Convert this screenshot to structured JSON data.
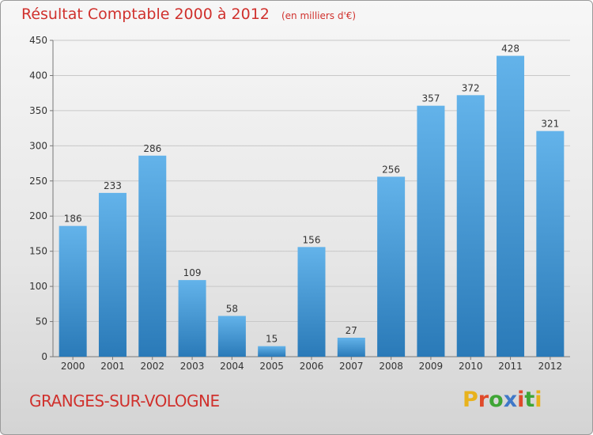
{
  "chart_data": {
    "type": "bar",
    "title": "Résultat Comptable 2000 à 2012",
    "subtitle": "(en milliers d'€)",
    "categories": [
      "2000",
      "2001",
      "2002",
      "2003",
      "2004",
      "2005",
      "2006",
      "2007",
      "2008",
      "2009",
      "2010",
      "2011",
      "2012"
    ],
    "values": [
      186,
      233,
      286,
      109,
      58,
      15,
      156,
      27,
      256,
      357,
      372,
      428,
      321
    ],
    "ylim": [
      0,
      450
    ],
    "yticks": [
      0,
      50,
      100,
      150,
      200,
      250,
      300,
      350,
      400,
      450
    ],
    "xlabel": "",
    "ylabel": "",
    "grid": true,
    "bar_color_top": "#63b3ea",
    "bar_color_bottom": "#2a7ab8"
  },
  "footer": {
    "commune": "GRANGES-SUR-VOLOGNE",
    "logo_letters": [
      "P",
      "r",
      "o",
      "x",
      "i",
      "t",
      "i"
    ],
    "logo_colors": [
      "#e8b21c",
      "#e04a2a",
      "#3fa535",
      "#3f78c8",
      "#e04a2a",
      "#3fa535",
      "#e8b21c"
    ]
  }
}
